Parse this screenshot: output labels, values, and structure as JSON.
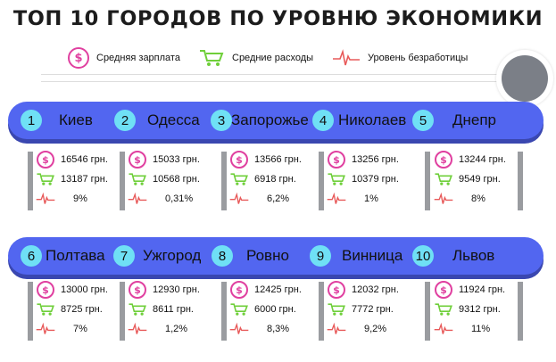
{
  "title": "ТОП 10 ГОРОДОВ ПО УРОВНЮ ЭКОНОМИКИ",
  "legend": {
    "salary": "Средняя зарплата",
    "expenses": "Средние расходы",
    "unemployment": "Уровень безработицы"
  },
  "icons": {
    "salary": "dollar-bubble-icon",
    "expenses": "shopping-cart-icon",
    "unemployment": "heartbeat-icon"
  },
  "colors": {
    "band": "#5266f0",
    "number_badge": "#6fe0f5",
    "salary": "#e040a0",
    "expenses": "#6fcf3a",
    "unemployment": "#e85a5a"
  },
  "row1": [
    {
      "num": "1",
      "name": "Киев",
      "salary": "16546 грн.",
      "expenses": "13187 грн.",
      "unemployment": "9%"
    },
    {
      "num": "2",
      "name": "Одесса",
      "salary": "15033 грн.",
      "expenses": "10568 грн.",
      "unemployment": "0,31%"
    },
    {
      "num": "3",
      "name": "Запорожье",
      "salary": "13566 грн.",
      "expenses": "6918 грн.",
      "unemployment": "6,2%"
    },
    {
      "num": "4",
      "name": "Николаев",
      "salary": "13256 грн.",
      "expenses": "10379 грн.",
      "unemployment": "1%"
    },
    {
      "num": "5",
      "name": "Днепр",
      "salary": "13244 грн.",
      "expenses": "9549 грн.",
      "unemployment": "8%"
    }
  ],
  "row2": [
    {
      "num": "6",
      "name": "Полтава",
      "salary": "13000 грн.",
      "expenses": "8725 грн.",
      "unemployment": "7%"
    },
    {
      "num": "7",
      "name": "Ужгород",
      "salary": "12930 грн.",
      "expenses": "8611 грн.",
      "unemployment": "1,2%"
    },
    {
      "num": "8",
      "name": "Ровно",
      "salary": "12425 грн.",
      "expenses": "6000 грн.",
      "unemployment": "8,3%"
    },
    {
      "num": "9",
      "name": "Винница",
      "salary": "12032 грн.",
      "expenses": "7772 грн.",
      "unemployment": "9,2%"
    },
    {
      "num": "10",
      "name": "Львов",
      "salary": "11924 грн.",
      "expenses": "9312 грн.",
      "unemployment": "11%"
    }
  ]
}
